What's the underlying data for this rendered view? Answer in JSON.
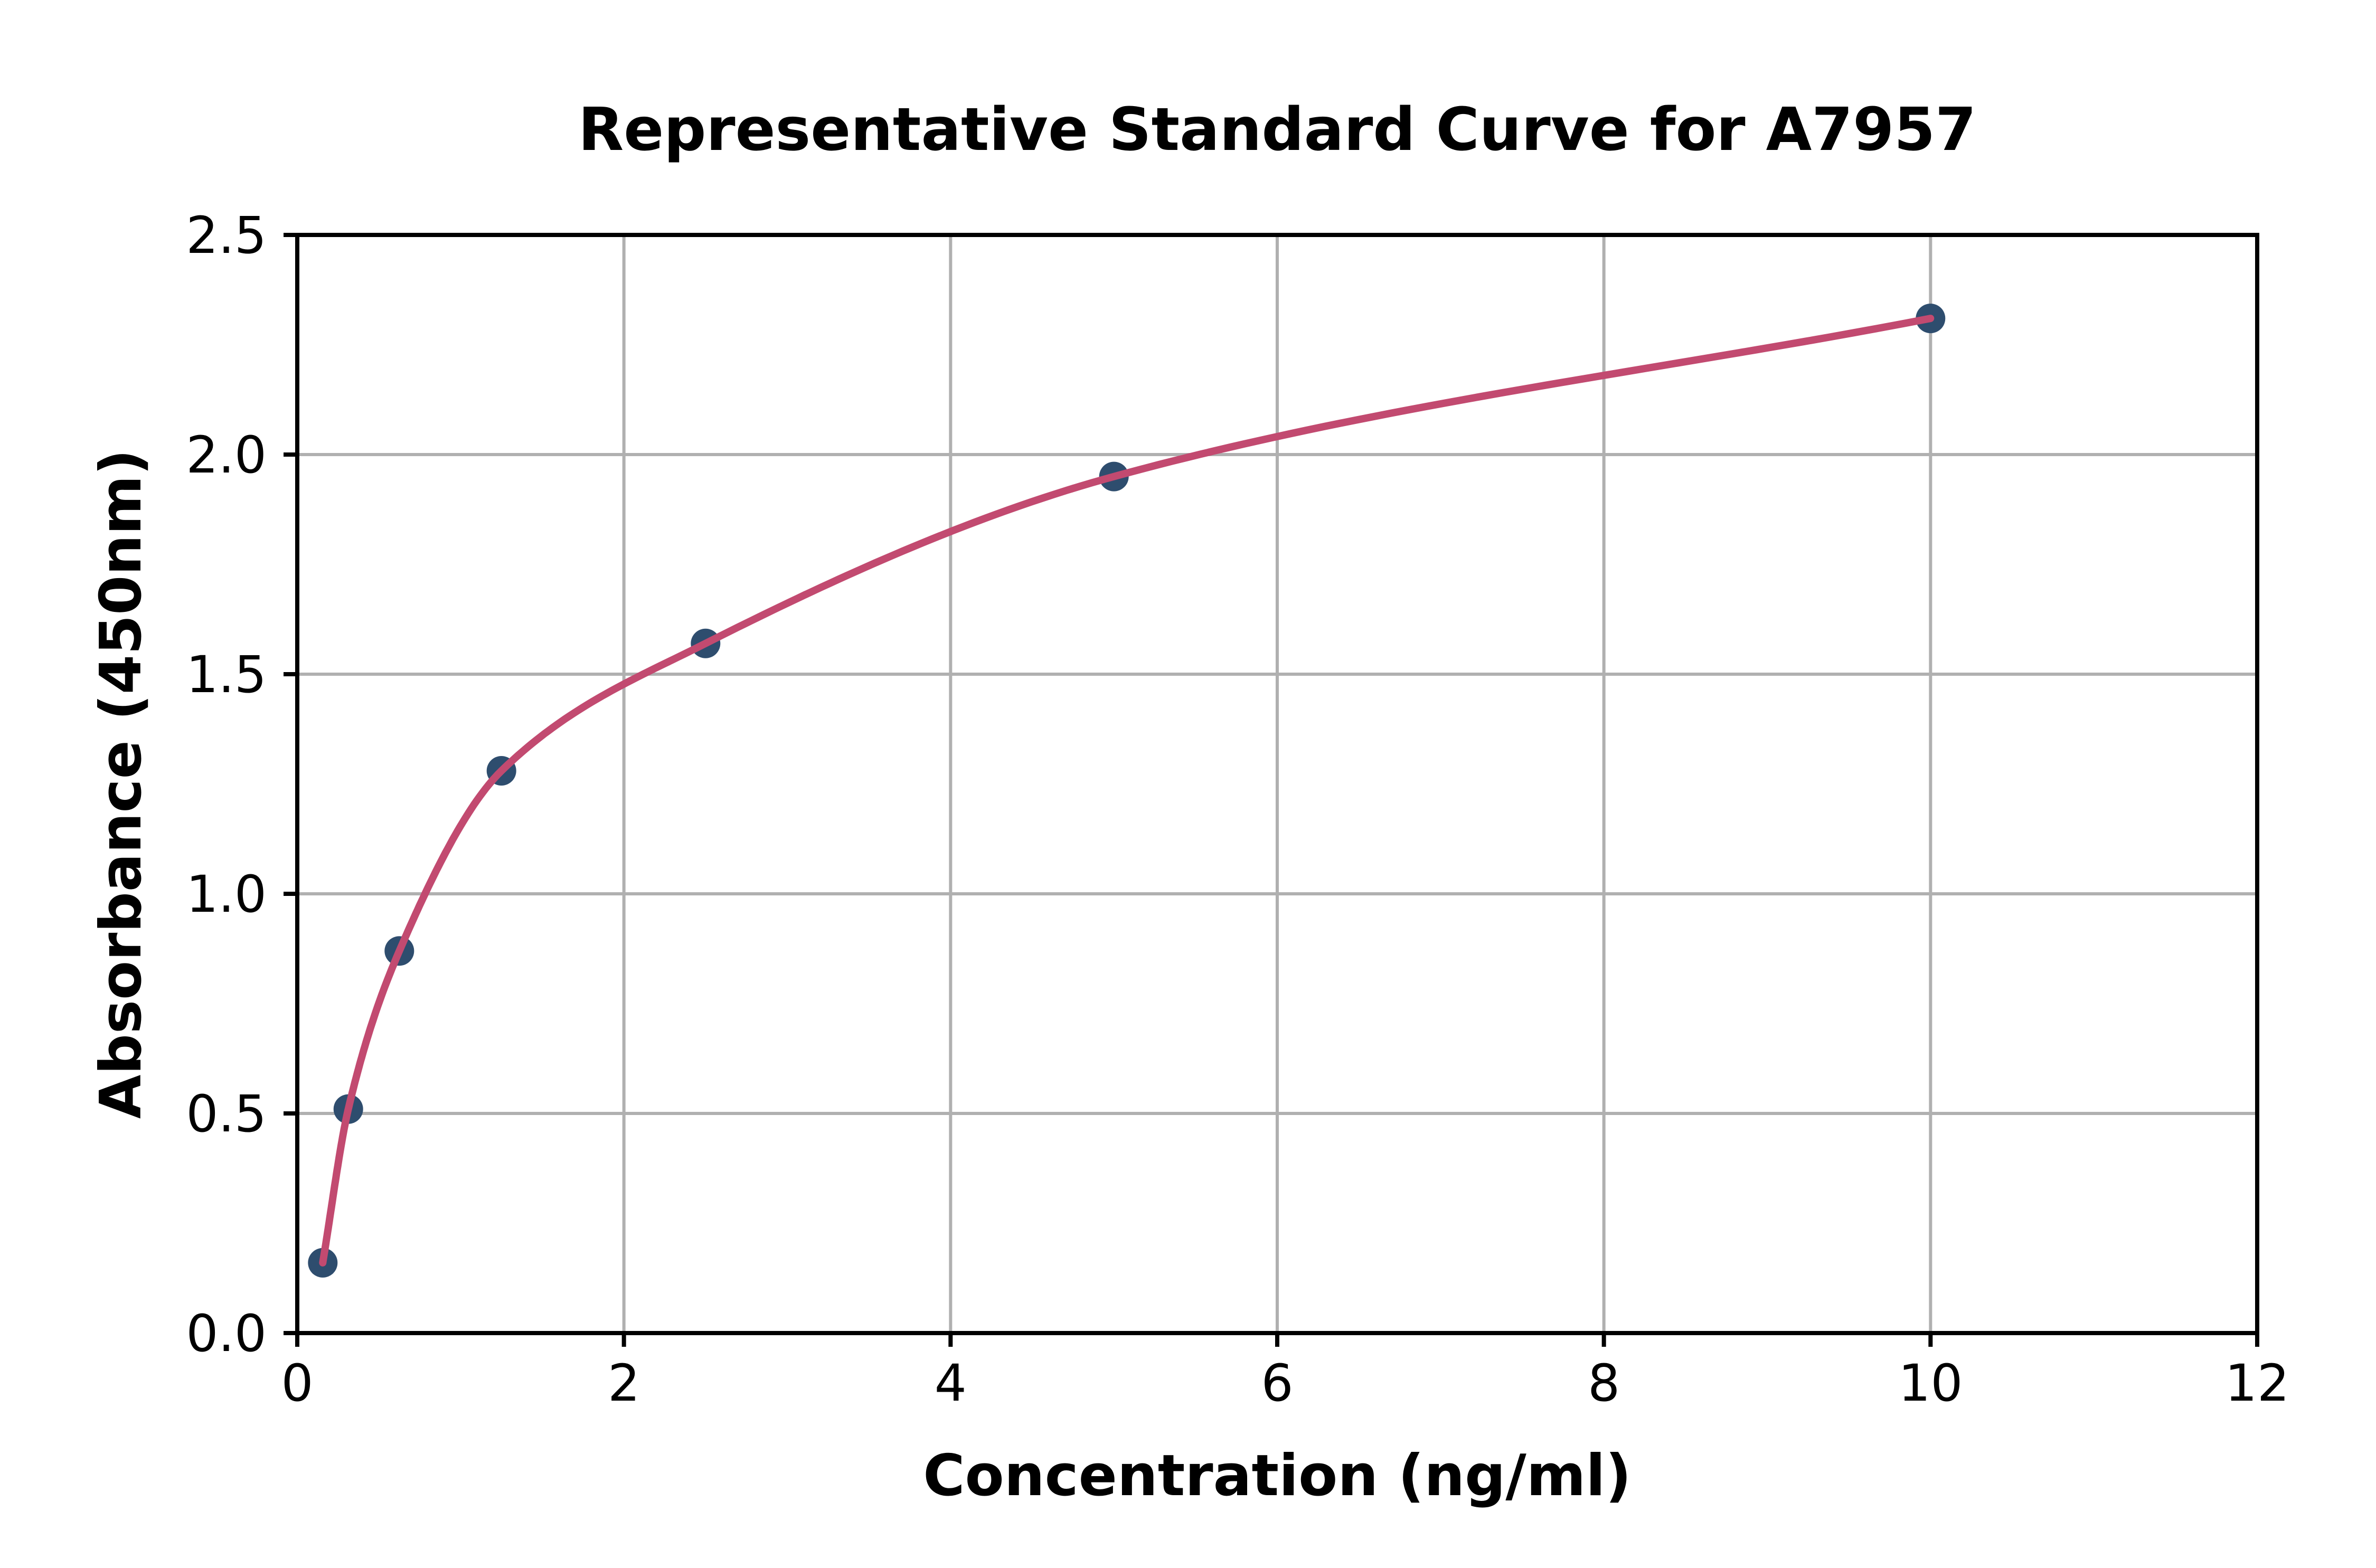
{
  "figure": {
    "title": "Representative Standard Curve for A7957",
    "x_axis_label": "Concentration (ng/ml)",
    "y_axis_label": "Absorbance (450nm)"
  },
  "colors": {
    "curve": "#c24a70",
    "marker": "#2e4d6e",
    "grid": "#b0b0b0",
    "axis": "#000000",
    "background": "#ffffff"
  },
  "chart_data": {
    "type": "scatter",
    "title": "Representative Standard Curve for A7957",
    "xlabel": "Concentration (ng/ml)",
    "ylabel": "Absorbance (450nm)",
    "xlim": [
      0,
      12
    ],
    "ylim": [
      0,
      2.5
    ],
    "xticks": [
      0,
      2,
      4,
      6,
      8,
      10,
      12
    ],
    "xtick_labels": [
      "0",
      "2",
      "4",
      "6",
      "8",
      "10",
      "12"
    ],
    "yticks": [
      0,
      0.5,
      1.0,
      1.5,
      2.0,
      2.5
    ],
    "ytick_labels": [
      "0.0",
      "0.5",
      "1.0",
      "1.5",
      "2.0",
      "2.5"
    ],
    "grid": true,
    "legend": false,
    "points": {
      "name": "standard-points",
      "x": [
        0.156,
        0.3125,
        0.625,
        1.25,
        2.5,
        5,
        10
      ],
      "y": [
        0.16,
        0.51,
        0.87,
        1.28,
        1.57,
        1.95,
        2.31
      ]
    },
    "fit_curve": {
      "name": "fitted-standard-curve",
      "style": "smooth-through-points",
      "x_start": 0.156,
      "x_end": 10
    }
  }
}
